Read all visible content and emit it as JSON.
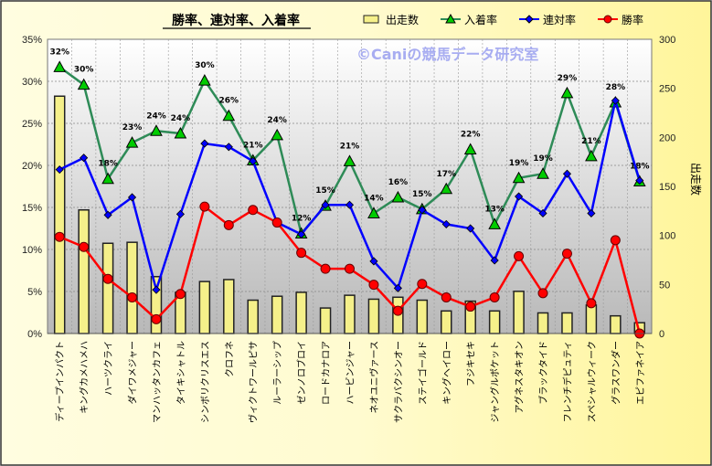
{
  "chart_data": {
    "type": "bar+line",
    "title": "勝率、連対率、入着率",
    "watermark": "©Caniの競馬データ研究室",
    "left_axis": {
      "min": 0,
      "max": 35,
      "step": 5,
      "suffix": "%"
    },
    "right_axis": {
      "label": "出走数",
      "min": 0,
      "max": 300,
      "step": 50
    },
    "grid": true,
    "legend_position": "top-right",
    "categories": [
      "ディープインパクト",
      "キングカメハメハ",
      "ハーツクライ",
      "ダイワメジャー",
      "マンハッタンカフェ",
      "タイキシャトル",
      "シンボリクリスエス",
      "クロフネ",
      "ヴィクトワールピサ",
      "ルーラーシップ",
      "ゼンノロブロイ",
      "ロードカナロア",
      "ハービンジャー",
      "ネオユニヴァース",
      "サクラバクシンオー",
      "ステイゴールド",
      "キングヘイロー",
      "フジキセキ",
      "ジャングルポケット",
      "アグネスタキオン",
      "ブラックタイド",
      "フレンチデピュティ",
      "スペシャルウィーク",
      "グラスワンダー",
      "エピファネイア"
    ],
    "series": [
      {
        "name": "出走数",
        "type": "bar",
        "axis": "right",
        "color": "#f5f08a",
        "values": [
          242,
          126,
          92,
          93,
          58,
          42,
          53,
          55,
          34,
          38,
          42,
          26,
          39,
          35,
          37,
          34,
          23,
          33,
          23,
          43,
          21,
          21,
          29,
          18,
          11
        ]
      },
      {
        "name": "入着率",
        "type": "line",
        "axis": "left",
        "color": "#2e8b57",
        "marker": "triangle",
        "marker_color": "#00cc00",
        "values": [
          31.7,
          29.6,
          18.4,
          22.7,
          24.1,
          23.8,
          30.1,
          25.9,
          20.6,
          23.6,
          11.9,
          15.2,
          20.5,
          14.3,
          16.2,
          14.8,
          17.2,
          21.9,
          13.0,
          18.5,
          19.0,
          28.6,
          21.1,
          27.5,
          18.1
        ],
        "labels": [
          "32%",
          "30%",
          "18%",
          "23%",
          "24%",
          "24%",
          "30%",
          "26%",
          "21%",
          "24%",
          "12%",
          "15%",
          "21%",
          "14%",
          "16%",
          "15%",
          "17%",
          "22%",
          "13%",
          "19%",
          "19%",
          "29%",
          "21%",
          "28%",
          "18%"
        ]
      },
      {
        "name": "連対率",
        "type": "line",
        "axis": "left",
        "color": "#0000ff",
        "marker": "diamond",
        "values": [
          19.5,
          20.9,
          14.1,
          16.2,
          5.2,
          14.2,
          22.6,
          22.2,
          20.5,
          13.2,
          11.8,
          15.3,
          15.3,
          8.6,
          5.4,
          14.7,
          13.0,
          12.5,
          8.7,
          16.3,
          14.3,
          19.0,
          14.3,
          27.7,
          18.2
        ]
      },
      {
        "name": "勝率",
        "type": "line",
        "axis": "left",
        "color": "#ff0000",
        "marker": "circle",
        "values": [
          11.5,
          10.3,
          6.5,
          4.3,
          1.7,
          4.7,
          15.1,
          12.9,
          14.7,
          13.2,
          9.6,
          7.7,
          7.7,
          5.8,
          2.7,
          5.9,
          4.3,
          3.2,
          4.3,
          9.2,
          4.8,
          9.5,
          3.6,
          11.1,
          0.0
        ]
      }
    ]
  }
}
